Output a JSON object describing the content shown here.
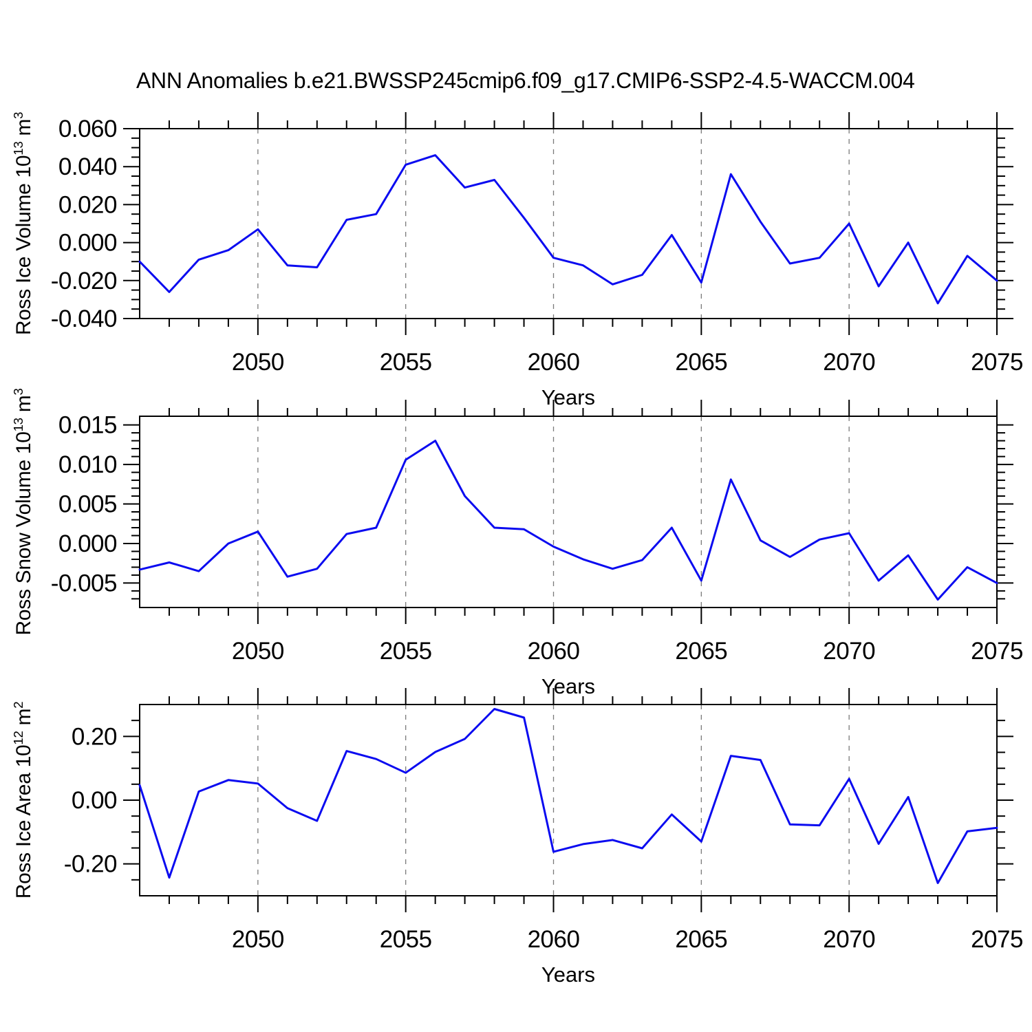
{
  "title": "ANN Anomalies b.e21.BWSSP245cmip6.f09_g17.CMIP6-SSP2-4.5-WACCM.004",
  "colors": {
    "line": "#0b0bf0",
    "axis": "#000000",
    "gridline": "#7a7a7a",
    "background": "#ffffff",
    "text": "#000000"
  },
  "x_axis": {
    "label": "Years",
    "start_year": 2046,
    "end_year": 2075,
    "major_tick_years": [
      2050,
      2055,
      2060,
      2065,
      2070,
      2075
    ],
    "major_tick_labels": [
      "2050",
      "2055",
      "2060",
      "2065",
      "2070",
      "2075"
    ],
    "gridline_years": [
      2050,
      2055,
      2060,
      2065,
      2070
    ]
  },
  "years": [
    2046,
    2047,
    2048,
    2049,
    2050,
    2051,
    2052,
    2053,
    2054,
    2055,
    2056,
    2057,
    2058,
    2059,
    2060,
    2061,
    2062,
    2063,
    2064,
    2065,
    2066,
    2067,
    2068,
    2069,
    2070,
    2071,
    2072,
    2073,
    2074,
    2075
  ],
  "chart_data": [
    {
      "type": "line",
      "name": "ross-ice-volume",
      "ylabel_plain": "Ross Ice Volume 10^13 m^3",
      "ylabel_segments": [
        {
          "text": "Ross Ice Volume 10"
        },
        {
          "text": "13",
          "sup": true
        },
        {
          "text": " m"
        },
        {
          "text": "3",
          "sup": true
        }
      ],
      "xlabel": "Years",
      "ylim": [
        -0.04,
        0.06
      ],
      "ytick_values": [
        -0.04,
        -0.02,
        0.0,
        0.02,
        0.04,
        0.06
      ],
      "ytick_labels": [
        "-0.040",
        "-0.020",
        "0.000",
        "0.020",
        "0.040",
        "0.060"
      ],
      "yminor_step": 0.005,
      "values": [
        -0.01,
        -0.026,
        -0.009,
        -0.004,
        0.007,
        -0.012,
        -0.013,
        0.012,
        0.015,
        0.041,
        0.046,
        0.029,
        0.033,
        0.013,
        -0.008,
        -0.012,
        -0.022,
        -0.017,
        0.004,
        -0.021,
        0.036,
        0.011,
        -0.011,
        -0.008,
        0.01,
        -0.023,
        0.0,
        -0.032,
        -0.007,
        -0.02
      ]
    },
    {
      "type": "line",
      "name": "ross-snow-volume",
      "ylabel_plain": "Ross Snow Volume 10^13 m^3",
      "ylabel_segments": [
        {
          "text": "Ross Snow Volume 10"
        },
        {
          "text": "13",
          "sup": true
        },
        {
          "text": " m"
        },
        {
          "text": "3",
          "sup": true
        }
      ],
      "xlabel": "Years",
      "ylim": [
        -0.0081,
        0.0161
      ],
      "ytick_values": [
        -0.005,
        0.0,
        0.005,
        0.01,
        0.015
      ],
      "ytick_labels": [
        "-0.005",
        "0.000",
        "0.005",
        "0.010",
        "0.015"
      ],
      "yminor_step": 0.001,
      "values": [
        -0.0033,
        -0.0024,
        -0.0035,
        0.0,
        0.0015,
        -0.0042,
        -0.0032,
        0.0012,
        0.002,
        0.0106,
        0.013,
        0.006,
        0.002,
        0.0018,
        -0.0004,
        -0.002,
        -0.0032,
        -0.0021,
        0.002,
        -0.0047,
        0.0081,
        0.0004,
        -0.0017,
        0.0005,
        0.0013,
        -0.0047,
        -0.0015,
        -0.0071,
        -0.003,
        -0.005
      ]
    },
    {
      "type": "line",
      "name": "ross-ice-area",
      "ylabel_plain": "Ross Ice Area 10^12 m^2",
      "ylabel_segments": [
        {
          "text": "Ross Ice Area 10"
        },
        {
          "text": "12",
          "sup": true
        },
        {
          "text": " m"
        },
        {
          "text": "2",
          "sup": true
        }
      ],
      "xlabel": "Years",
      "ylim": [
        -0.3,
        0.3
      ],
      "ytick_values": [
        -0.2,
        0.0,
        0.2
      ],
      "ytick_labels": [
        "-0.20",
        "0.00",
        "0.20"
      ],
      "yminor_step": 0.05,
      "values": [
        0.047,
        -0.243,
        0.027,
        0.063,
        0.052,
        -0.025,
        -0.065,
        0.154,
        0.129,
        0.086,
        0.151,
        0.192,
        0.286,
        0.259,
        -0.162,
        -0.138,
        -0.125,
        -0.151,
        -0.045,
        -0.13,
        0.139,
        0.126,
        -0.076,
        -0.079,
        0.067,
        -0.137,
        0.01,
        -0.26,
        -0.098,
        -0.087
      ]
    }
  ]
}
